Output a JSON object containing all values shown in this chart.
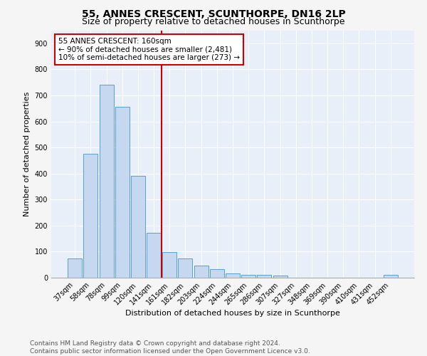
{
  "title": "55, ANNES CRESCENT, SCUNTHORPE, DN16 2LP",
  "subtitle": "Size of property relative to detached houses in Scunthorpe",
  "xlabel": "Distribution of detached houses by size in Scunthorpe",
  "ylabel": "Number of detached properties",
  "footnote1": "Contains HM Land Registry data © Crown copyright and database right 2024.",
  "footnote2": "Contains public sector information licensed under the Open Government Licence v3.0.",
  "bar_labels": [
    "37sqm",
    "58sqm",
    "78sqm",
    "99sqm",
    "120sqm",
    "141sqm",
    "161sqm",
    "182sqm",
    "203sqm",
    "224sqm",
    "244sqm",
    "265sqm",
    "286sqm",
    "307sqm",
    "327sqm",
    "348sqm",
    "369sqm",
    "390sqm",
    "410sqm",
    "431sqm",
    "452sqm"
  ],
  "bar_values": [
    75,
    477,
    742,
    657,
    390,
    172,
    98,
    75,
    46,
    33,
    17,
    12,
    10,
    8,
    0,
    0,
    0,
    0,
    0,
    0,
    10
  ],
  "bar_color": "#c5d8f0",
  "bar_edge_color": "#5a9fd4",
  "vline_index": 6,
  "vline_color": "#cc0000",
  "annotation_title": "55 ANNES CRESCENT: 160sqm",
  "annotation_line1": "← 90% of detached houses are smaller (2,481)",
  "annotation_line2": "10% of semi-detached houses are larger (273) →",
  "annotation_box_color": "#ffffff",
  "annotation_box_edge": "#cc0000",
  "ylim": [
    0,
    950
  ],
  "yticks": [
    0,
    100,
    200,
    300,
    400,
    500,
    600,
    700,
    800,
    900
  ],
  "background_color": "#e8eff8",
  "grid_color": "#ffffff",
  "fig_bg_color": "#f5f5f5",
  "title_fontsize": 10,
  "subtitle_fontsize": 9,
  "label_fontsize": 8,
  "tick_fontsize": 7,
  "annotation_fontsize": 7.5,
  "footnote_fontsize": 6.5
}
